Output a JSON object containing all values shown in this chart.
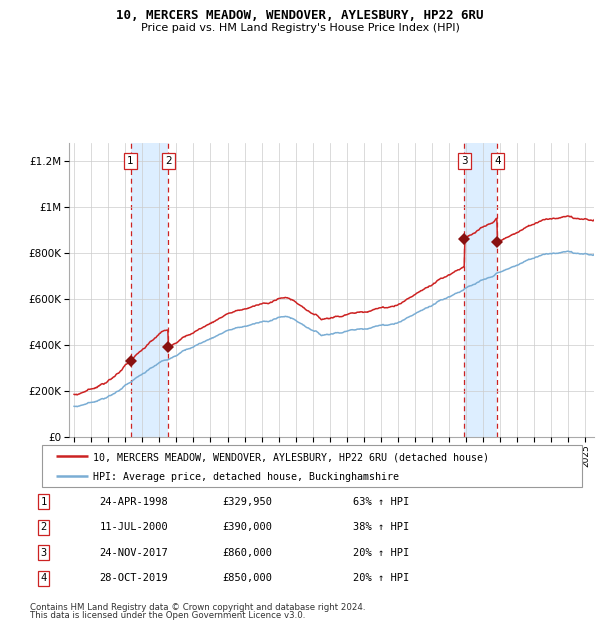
{
  "title": "10, MERCERS MEADOW, WENDOVER, AYLESBURY, HP22 6RU",
  "subtitle": "Price paid vs. HM Land Registry's House Price Index (HPI)",
  "xlim": [
    1994.7,
    2025.5
  ],
  "ylim": [
    0,
    1280000
  ],
  "yticks": [
    0,
    200000,
    400000,
    600000,
    800000,
    1000000,
    1200000
  ],
  "ytick_labels": [
    "£0",
    "£200K",
    "£400K",
    "£600K",
    "£800K",
    "£1M",
    "£1.2M"
  ],
  "xticks": [
    1995,
    1996,
    1997,
    1998,
    1999,
    2000,
    2001,
    2002,
    2003,
    2004,
    2005,
    2006,
    2007,
    2008,
    2009,
    2010,
    2011,
    2012,
    2013,
    2014,
    2015,
    2016,
    2017,
    2018,
    2019,
    2020,
    2021,
    2022,
    2023,
    2024,
    2025
  ],
  "sale_dates": [
    1998.31,
    2000.53,
    2017.9,
    2019.83
  ],
  "sale_prices": [
    329950,
    390000,
    860000,
    850000
  ],
  "sale_labels": [
    "1",
    "2",
    "3",
    "4"
  ],
  "hpi_color": "#7aadd4",
  "price_color": "#cc2222",
  "marker_color": "#881111",
  "shade_color": "#ddeeff",
  "vline_color": "#cc2222",
  "footnote1": "Contains HM Land Registry data © Crown copyright and database right 2024.",
  "footnote2": "This data is licensed under the Open Government Licence v3.0.",
  "legend1": "10, MERCERS MEADOW, WENDOVER, AYLESBURY, HP22 6RU (detached house)",
  "legend2": "HPI: Average price, detached house, Buckinghamshire",
  "table": [
    [
      "1",
      "24-APR-1998",
      "£329,950",
      "63% ↑ HPI"
    ],
    [
      "2",
      "11-JUL-2000",
      "£390,000",
      "38% ↑ HPI"
    ],
    [
      "3",
      "24-NOV-2017",
      "£860,000",
      "20% ↑ HPI"
    ],
    [
      "4",
      "28-OCT-2019",
      "£850,000",
      "20% ↑ HPI"
    ]
  ]
}
